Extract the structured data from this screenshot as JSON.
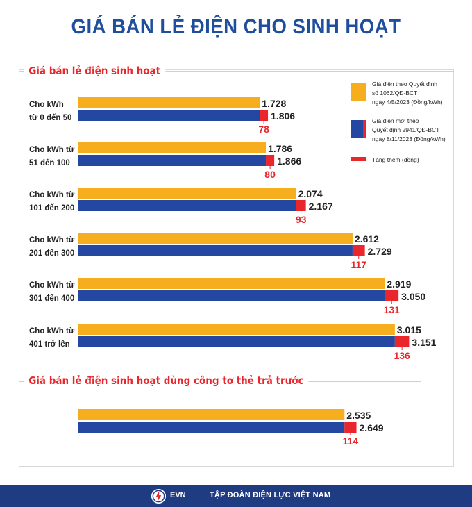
{
  "title": "GIÁ BÁN LẺ ĐIỆN CHO SINH HOẠT",
  "section1_title": "Giá bán lẻ điện sinh hoạt",
  "section2_title": "Giá bán lẻ điện sinh hoạt dùng công tơ thẻ trả trước",
  "legend": {
    "old": [
      "Giá điện theo Quyết định",
      "số 1062/QĐ-BCT",
      "ngày 4/5/2023 (Đồng/kWh)"
    ],
    "new": [
      "Giá điện mới theo",
      "Quyết định 2941/QĐ-BCT",
      "ngày 8/11/2023 (Đồng/kWh)"
    ],
    "increase": "Tăng thêm (đồng)"
  },
  "colors": {
    "old": "#f6ad1e",
    "new": "#2447a1",
    "increase": "#e8262c",
    "title": "#1f4e9c",
    "footer": "#1f3b82"
  },
  "chart_data": {
    "type": "bar",
    "orientation": "horizontal",
    "categories": [
      [
        "Cho kWh",
        "từ 0 đến 50"
      ],
      [
        "Cho kWh từ",
        "51 đến 100"
      ],
      [
        "Cho kWh từ",
        "101 đến 200"
      ],
      [
        "Cho kWh từ",
        "201 đến 300"
      ],
      [
        "Cho kWh từ",
        "301 đến 400"
      ],
      [
        "Cho kWh từ",
        "401 trở lên"
      ]
    ],
    "series": [
      {
        "name": "Giá điện theo Quyết định số 1062/QĐ-BCT ngày 4/5/2023 (Đồng/kWh)",
        "values": [
          1728,
          1786,
          2074,
          2612,
          2919,
          3015
        ],
        "labels": [
          "1.728",
          "1.786",
          "2.074",
          "2.612",
          "2.919",
          "3.015"
        ]
      },
      {
        "name": "Giá điện mới theo Quyết định 2941/QĐ-BCT ngày 8/11/2023 (Đồng/kWh)",
        "values": [
          1806,
          1866,
          2167,
          2729,
          3050,
          3151
        ],
        "labels": [
          "1.806",
          "1.866",
          "2.167",
          "2.729",
          "3.050",
          "3.151"
        ]
      },
      {
        "name": "Tăng thêm (đồng)",
        "values": [
          78,
          80,
          93,
          117,
          131,
          136
        ]
      }
    ],
    "prepaid": {
      "old": 2535,
      "new": 2649,
      "increase": 114,
      "old_label": "2.535",
      "new_label": "2.649"
    }
  },
  "footer": {
    "logo_text": "EVN",
    "org": "TẬP ĐOÀN ĐIỆN LỰC VIỆT NAM"
  }
}
